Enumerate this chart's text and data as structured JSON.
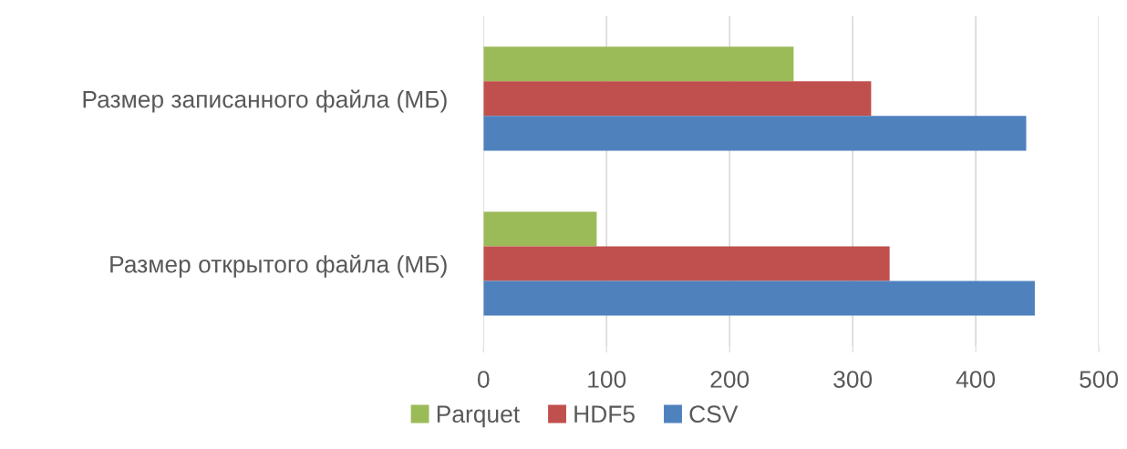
{
  "chart_data": {
    "type": "bar",
    "orientation": "horizontal",
    "categories": [
      "Размер записанного файла (МБ)",
      "Размер открытого файла (МБ)"
    ],
    "series": [
      {
        "name": "Parquet",
        "color": "#9bbb59",
        "values": [
          252,
          92
        ]
      },
      {
        "name": "HDF5",
        "color": "#c0504d",
        "values": [
          315,
          330
        ]
      },
      {
        "name": "CSV",
        "color": "#4f81bd",
        "values": [
          441,
          448
        ]
      }
    ],
    "xlim": [
      0,
      500
    ],
    "xticks": [
      0,
      100,
      200,
      300,
      400,
      500
    ],
    "grid": "x",
    "legend": "bottom"
  }
}
